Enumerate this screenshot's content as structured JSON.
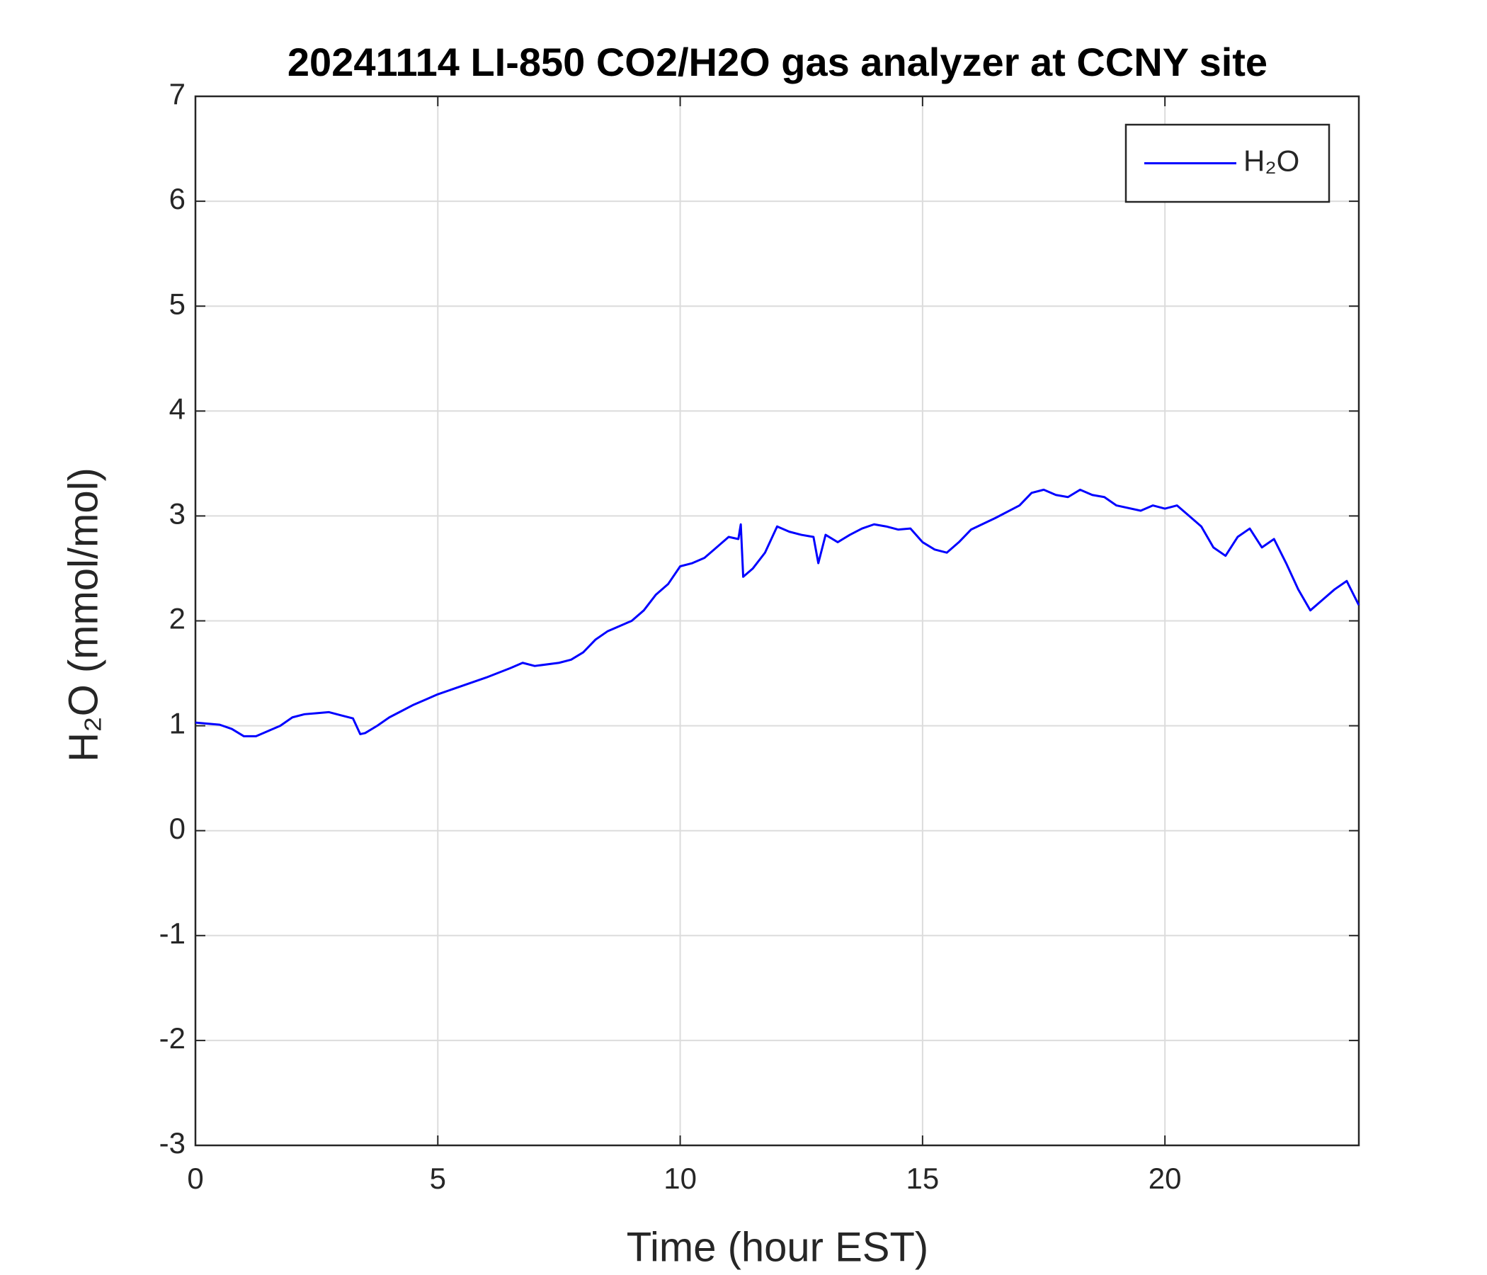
{
  "chart_data": {
    "type": "line",
    "title": "20241114 LI-850 CO2/H2O gas analyzer at CCNY site",
    "x_label": "Time (hour EST)",
    "y_label": "H₂O (mmol/mol)",
    "xlim": [
      0,
      24
    ],
    "xticks": [
      0,
      5,
      10,
      15,
      20
    ],
    "ylim": [
      -3,
      7
    ],
    "yticks": [
      -3,
      -2,
      -1,
      0,
      1,
      2,
      3,
      4,
      5,
      6,
      7
    ],
    "grid": true,
    "legend": "upper right",
    "x": [
      0,
      0.25,
      0.5,
      0.75,
      1.0,
      1.25,
      1.5,
      1.75,
      2.0,
      2.25,
      2.5,
      2.75,
      3.0,
      3.25,
      3.4,
      3.5,
      3.75,
      4.0,
      4.25,
      4.5,
      4.75,
      5.0,
      5.5,
      6.0,
      6.5,
      6.75,
      7.0,
      7.5,
      7.75,
      8.0,
      8.25,
      8.5,
      8.75,
      9.0,
      9.25,
      9.5,
      9.75,
      10.0,
      10.25,
      10.5,
      10.75,
      11.0,
      11.2,
      11.25,
      11.3,
      11.5,
      11.75,
      12.0,
      12.25,
      12.5,
      12.75,
      12.85,
      13.0,
      13.25,
      13.5,
      13.75,
      14.0,
      14.25,
      14.5,
      14.75,
      15.0,
      15.25,
      15.5,
      15.75,
      16.0,
      16.5,
      17.0,
      17.25,
      17.5,
      17.75,
      18.0,
      18.25,
      18.5,
      18.75,
      19.0,
      19.5,
      19.75,
      20.0,
      20.25,
      20.5,
      20.75,
      21.0,
      21.25,
      21.5,
      21.75,
      22.0,
      22.25,
      22.5,
      22.75,
      23.0,
      23.25,
      23.5,
      23.75,
      24
    ],
    "series": [
      {
        "name": "H₂O",
        "color": "#0000ff",
        "values": [
          1.03,
          1.02,
          1.01,
          0.97,
          0.9,
          0.9,
          0.95,
          1.0,
          1.08,
          1.11,
          1.12,
          1.13,
          1.1,
          1.07,
          0.92,
          0.93,
          1.0,
          1.08,
          1.14,
          1.2,
          1.25,
          1.3,
          1.38,
          1.46,
          1.55,
          1.6,
          1.57,
          1.6,
          1.63,
          1.7,
          1.82,
          1.9,
          1.95,
          2.0,
          2.1,
          2.25,
          2.35,
          2.52,
          2.55,
          2.6,
          2.7,
          2.8,
          2.78,
          2.92,
          2.42,
          2.5,
          2.65,
          2.9,
          2.85,
          2.82,
          2.8,
          2.55,
          2.82,
          2.75,
          2.82,
          2.88,
          2.92,
          2.9,
          2.87,
          2.88,
          2.75,
          2.68,
          2.65,
          2.75,
          2.87,
          2.98,
          3.1,
          3.22,
          3.25,
          3.2,
          3.18,
          3.25,
          3.2,
          3.18,
          3.1,
          3.05,
          3.1,
          3.07,
          3.1,
          3.0,
          2.9,
          2.7,
          2.62,
          2.8,
          2.88,
          2.7,
          2.78,
          2.55,
          2.3,
          2.1,
          2.2,
          2.3,
          2.38,
          2.15
        ]
      }
    ]
  }
}
